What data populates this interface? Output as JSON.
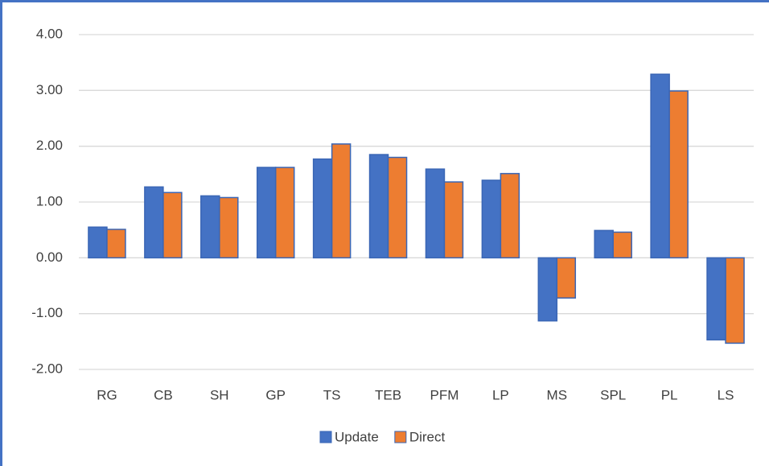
{
  "chart_data": {
    "type": "bar",
    "categories": [
      "RG",
      "CB",
      "SH",
      "GP",
      "TS",
      "TEB",
      "PFM",
      "LP",
      "MS",
      "SPL",
      "PL",
      "LS"
    ],
    "series": [
      {
        "name": "Update",
        "color": "#4472c4",
        "values": [
          0.55,
          1.27,
          1.11,
          1.62,
          1.77,
          1.85,
          1.59,
          1.39,
          -1.13,
          0.49,
          3.29,
          -1.47
        ]
      },
      {
        "name": "Direct",
        "color": "#ed7d31",
        "values": [
          0.51,
          1.17,
          1.08,
          1.62,
          2.04,
          1.8,
          1.36,
          1.51,
          -0.72,
          0.46,
          2.99,
          -1.53
        ]
      }
    ],
    "ylim": [
      -2,
      4
    ],
    "yticks": [
      {
        "value": -2,
        "label": "-2.00"
      },
      {
        "value": -1,
        "label": "-1.00"
      },
      {
        "value": 0,
        "label": "0.00"
      },
      {
        "value": 1,
        "label": "1.00"
      },
      {
        "value": 2,
        "label": "2.00"
      },
      {
        "value": 3,
        "label": "3.00"
      },
      {
        "value": 4,
        "label": "4.00"
      }
    ],
    "grid": true,
    "legend": "bottom"
  }
}
